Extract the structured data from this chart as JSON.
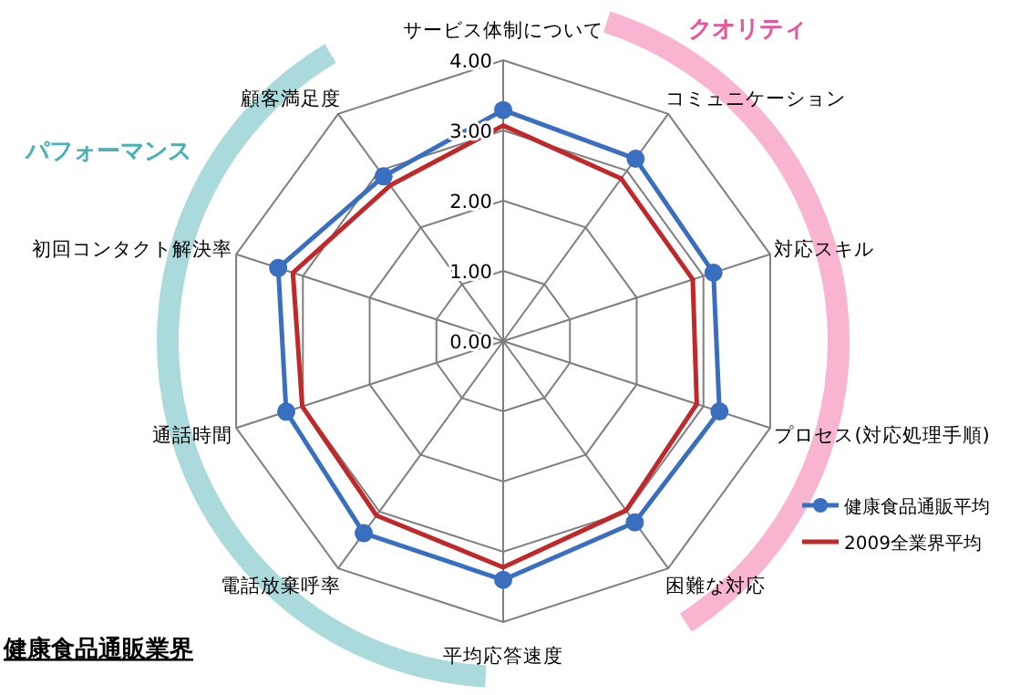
{
  "chart_data": {
    "type": "radar",
    "title": "健康食品通販業界",
    "categories": [
      "サービス体制について",
      "コミュニケーション",
      "対応スキル",
      "プロセス(対応処理手順)",
      "困難な対応",
      "平均応答速度",
      "電話放棄呼率",
      "通話時間",
      "初回コンタクト解決率",
      "顧客満足度"
    ],
    "series": [
      {
        "name": "健康食品通販平均",
        "color": "#3a6fc0",
        "marker": "circle",
        "values": [
          3.29,
          3.21,
          3.15,
          3.24,
          3.19,
          3.4,
          3.38,
          3.25,
          3.37,
          2.9
        ]
      },
      {
        "name": "2009全業界平均",
        "color": "#c0282a",
        "marker": "none",
        "values": [
          3.07,
          2.86,
          2.84,
          2.9,
          2.98,
          3.22,
          3.07,
          3.01,
          3.15,
          2.74
        ]
      }
    ],
    "ylim": [
      0,
      4
    ],
    "yticks": [
      {
        "value": 0,
        "label": "0.00"
      },
      {
        "value": 1,
        "label": "1.00"
      },
      {
        "value": 2,
        "label": "2.00"
      },
      {
        "value": 3,
        "label": "3.00"
      },
      {
        "value": 4,
        "label": "4.00"
      }
    ],
    "grid": true,
    "legend": "right",
    "annotations": [
      "パフォーマンス",
      "クオリティ"
    ]
  }
}
